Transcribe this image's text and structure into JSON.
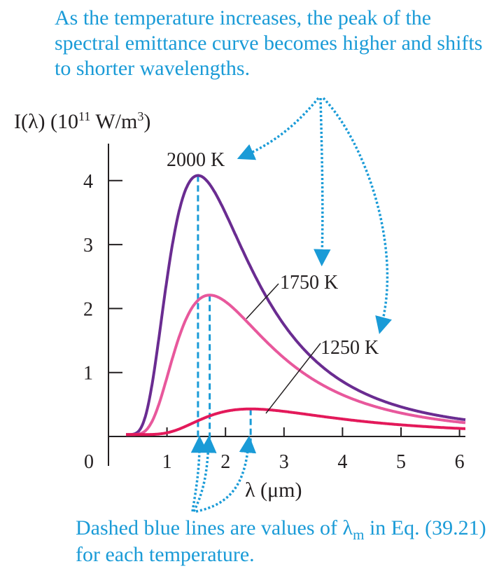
{
  "annotations": {
    "top_note": "As the temperature increases, the peak of the spectral emittance curve becomes higher and shifts to shorter wavelengths.",
    "bottom_note_prefix": "Dashed blue lines are values of λ",
    "bottom_note_sub": "m",
    "bottom_note_suffix": " in Eq. (39.21) for each temperature."
  },
  "chart_data": {
    "type": "line",
    "title": "",
    "ylabel_main": "I(λ) (10",
    "ylabel_exp": "11",
    "ylabel_unit": " W/m",
    "ylabel_unit_exp": "3",
    "ylabel_close": ")",
    "xlabel": "λ (μm)",
    "xlim": [
      0,
      6.1
    ],
    "ylim": [
      0,
      4.6
    ],
    "x_ticks": [
      1,
      2,
      3,
      4,
      5,
      6
    ],
    "y_ticks": [
      1,
      2,
      3,
      4
    ],
    "origin_label": "0",
    "series": [
      {
        "name": "2000 K",
        "T": 2000,
        "peak_x": 1.53,
        "peak_y": 4.05,
        "color": "#6a2c91"
      },
      {
        "name": "1750 K",
        "T": 1750,
        "peak_x": 1.73,
        "peak_y": 2.18,
        "color": "#e8589c"
      },
      {
        "name": "1250 K",
        "T": 1250,
        "peak_x": 2.43,
        "peak_y": 0.4,
        "color": "#e3195a"
      }
    ],
    "dashed_line_color": "#1a9bd7",
    "axis_color": "#231f20"
  }
}
